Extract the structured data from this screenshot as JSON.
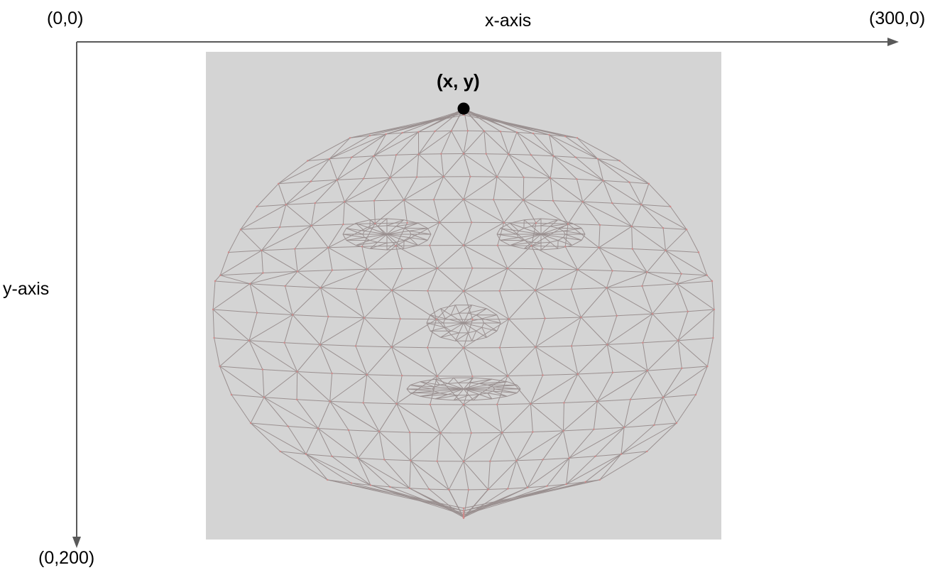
{
  "labels": {
    "origin": "(0,0)",
    "x_axis": "x-axis",
    "x_end": "(300,0)",
    "y_axis": "y-axis",
    "y_end": "(0,200)",
    "point": "(x, y)"
  },
  "colors": {
    "background": "#ffffff",
    "panel": "#d4d4d4",
    "axis": "#595959",
    "mesh_edge": "#9a9090",
    "mesh_vertex": "#d08a8a",
    "point": "#000000"
  },
  "icons": {
    "x_axis_arrow": "arrow-right",
    "y_axis_arrow": "arrow-down",
    "point_marker": "filled-circle"
  }
}
